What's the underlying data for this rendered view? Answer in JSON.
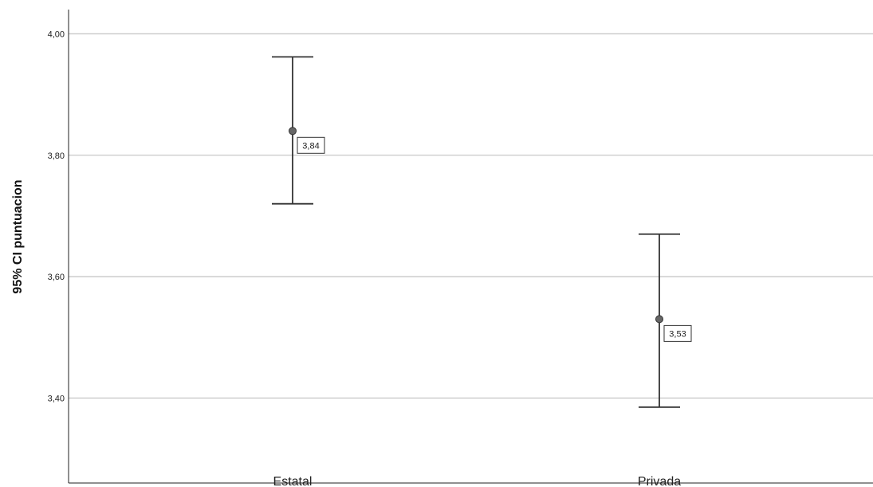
{
  "chart_data": {
    "type": "scatter",
    "categories": [
      "Estatal",
      "Privada"
    ],
    "series": [
      {
        "mean": [
          3.84,
          3.53
        ],
        "lower": [
          3.72,
          3.385
        ],
        "upper": [
          3.962,
          3.67
        ]
      }
    ],
    "data_labels": [
      "3,84",
      "3,53"
    ],
    "ylabel": "95% CI puntuacion",
    "xlabel": "",
    "ylim": [
      3.26,
      4.04
    ],
    "yticks": [
      3.4,
      3.6,
      3.8,
      4.0
    ],
    "ytick_labels": [
      "3,40",
      "3,60",
      "3,80",
      "4,00"
    ],
    "grid": true,
    "colors": {
      "marker": "#666666",
      "line": "#333333",
      "grid": "#c8c8c8"
    }
  }
}
